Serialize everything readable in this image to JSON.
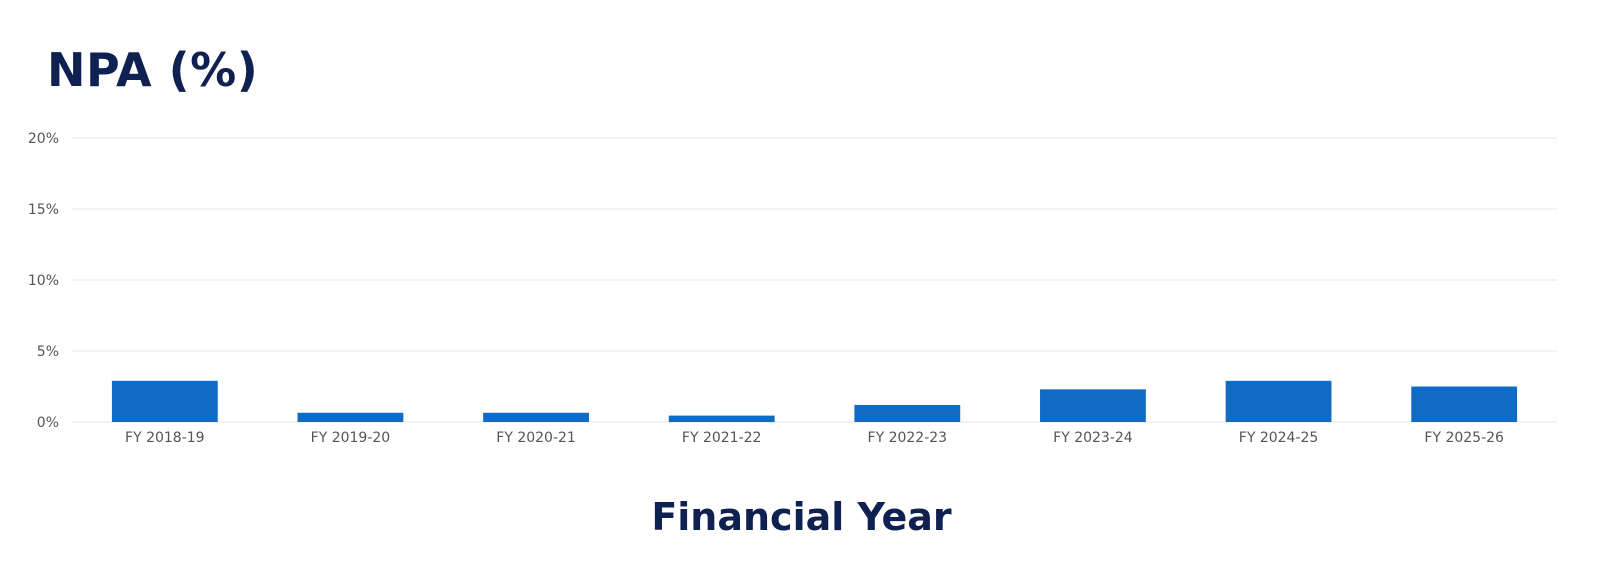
{
  "chart_data": {
    "type": "bar",
    "title": "NPA (%)",
    "xlabel": "Financial Year",
    "ylabel": "",
    "categories": [
      "FY 2018-19",
      "FY 2019-20",
      "FY 2020-21",
      "FY 2021-22",
      "FY 2022-23",
      "FY 2023-24",
      "FY 2024-25",
      "FY 2025-26"
    ],
    "values": [
      2.9,
      0.65,
      0.65,
      0.45,
      1.2,
      2.3,
      2.9,
      2.5
    ],
    "ylim": [
      0,
      20
    ],
    "yticks": [
      0,
      5,
      10,
      15,
      20
    ],
    "ytick_labels": [
      "0%",
      "5%",
      "10%",
      "15%",
      "20%"
    ],
    "grid": true,
    "legend": "none",
    "colors": {
      "bar": "#0f6bc4",
      "title": "#0f2150",
      "grid": "#ececec",
      "tick": "#555555"
    }
  }
}
